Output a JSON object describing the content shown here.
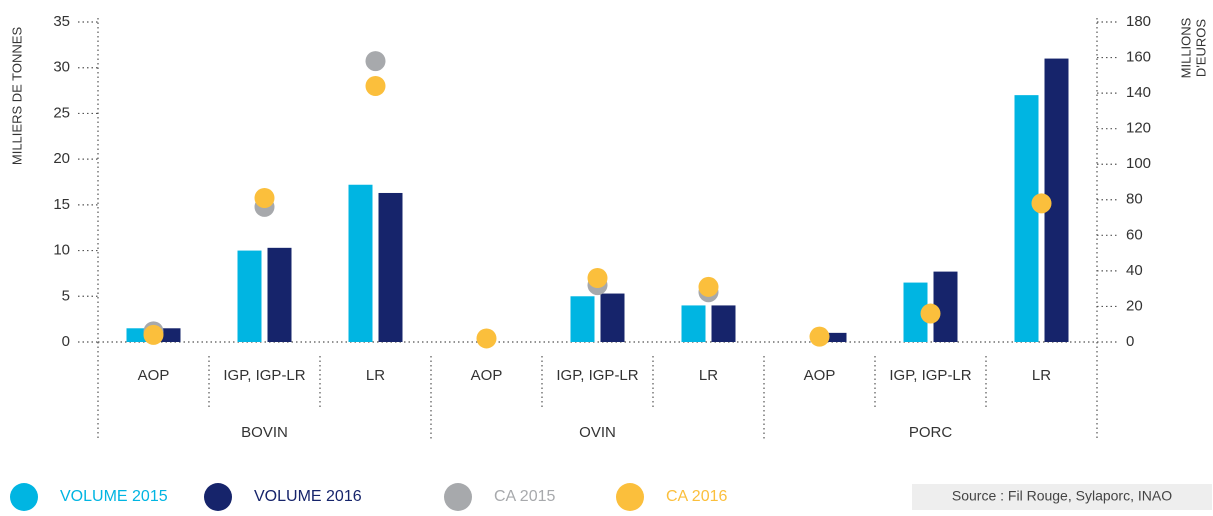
{
  "chart_data": {
    "type": "bar",
    "categories": [
      "AOP",
      "IGP, IGP-LR",
      "LR",
      "AOP",
      "IGP, IGP-LR",
      "LR",
      "AOP",
      "IGP, IGP-LR",
      "LR"
    ],
    "groups": [
      "BOVIN",
      "OVIN",
      "PORC"
    ],
    "y_label": "MILLIERS DE TONNES",
    "y2_label": [
      "MILLIONS",
      "D'EUROS"
    ],
    "ylim": [
      0,
      35
    ],
    "yticks": [
      0,
      5,
      10,
      15,
      20,
      25,
      30,
      35
    ],
    "y2lim": [
      0,
      180
    ],
    "y2ticks": [
      0,
      20,
      40,
      60,
      80,
      100,
      120,
      140,
      160,
      180
    ],
    "series": [
      {
        "name": "VOLUME 2015",
        "color": "#00b5e2",
        "kind": "bar",
        "values": [
          1.5,
          10,
          17.2,
          null,
          5,
          4,
          null,
          6.5,
          27
        ]
      },
      {
        "name": "VOLUME 2016",
        "color": "#16246b",
        "kind": "bar",
        "values": [
          1.5,
          10.3,
          16.3,
          null,
          5.3,
          4,
          1,
          7.7,
          31
        ]
      },
      {
        "name": "CA 2015",
        "color": "#a7a9ac",
        "kind": "dot",
        "axis": "y2",
        "values": [
          6,
          76,
          158,
          null,
          32,
          28,
          null,
          null,
          null
        ]
      },
      {
        "name": "CA 2016",
        "color": "#fbbf3c",
        "kind": "dot",
        "axis": "y2",
        "values": [
          4,
          81,
          144,
          2,
          36,
          31,
          3,
          16,
          78
        ]
      }
    ],
    "source": "Source : Fil Rouge, Sylaporc, INAO"
  }
}
